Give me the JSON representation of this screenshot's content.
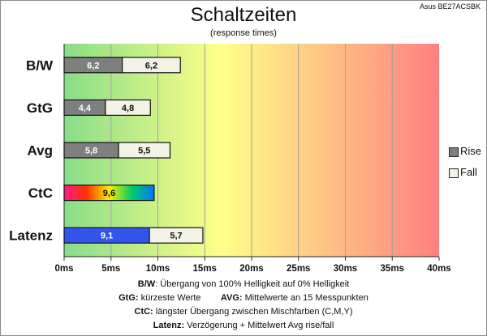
{
  "title": "Schaltzeiten",
  "subtitle": "(response times)",
  "model": "Asus BE27ACSBK",
  "notes": {
    "bw_key": "B/W",
    "bw_text": ":  Übergang von 100% Helligkeit auf 0% Helligkeit",
    "gtg_key": "GtG:",
    "gtg_text": " kürzeste  Werte",
    "avg_key": "AVG:",
    "avg_text": " Mittelwerte  an 15 Messpunkten",
    "ctc_key": "CtC:",
    "ctc_text": " längster Übergang  zwischen Mischfarben (C,M,Y)",
    "lat_key": "Latenz:",
    "lat_text": " Verzögerung  + Mittelwert  Avg rise/fall"
  },
  "chart_data": {
    "type": "bar",
    "orientation": "horizontal",
    "stacked": true,
    "categories": [
      "B/W",
      "GtG",
      "Avg",
      "CtC",
      "Latenz"
    ],
    "series": [
      {
        "name": "Rise",
        "values": [
          6.2,
          4.4,
          5.8,
          9.6,
          9.1
        ],
        "labels": [
          "6,2",
          "4,4",
          "5,8",
          "9,6",
          "9,1"
        ]
      },
      {
        "name": "Fall",
        "values": [
          6.2,
          4.8,
          5.5,
          null,
          5.7
        ],
        "labels": [
          "6,2",
          "4,8",
          "5,5",
          "",
          "5,7"
        ]
      }
    ],
    "segment_colors": {
      "rise": "#7f7f7f",
      "fall": "#f2f2e6",
      "ctc": "rainbow",
      "latenz_delay": "#3355ee"
    },
    "xlim": [
      0,
      40
    ],
    "xticks": [
      0,
      5,
      10,
      15,
      20,
      25,
      30,
      35,
      40
    ],
    "xtick_labels": [
      "0ms",
      "5ms",
      "10ms",
      "15ms",
      "20ms",
      "25ms",
      "30ms",
      "35ms",
      "40ms"
    ],
    "background_gradient": [
      "#88dd88",
      "#ffff88",
      "#ff8080"
    ],
    "grid": "vertical",
    "legend": "right"
  }
}
